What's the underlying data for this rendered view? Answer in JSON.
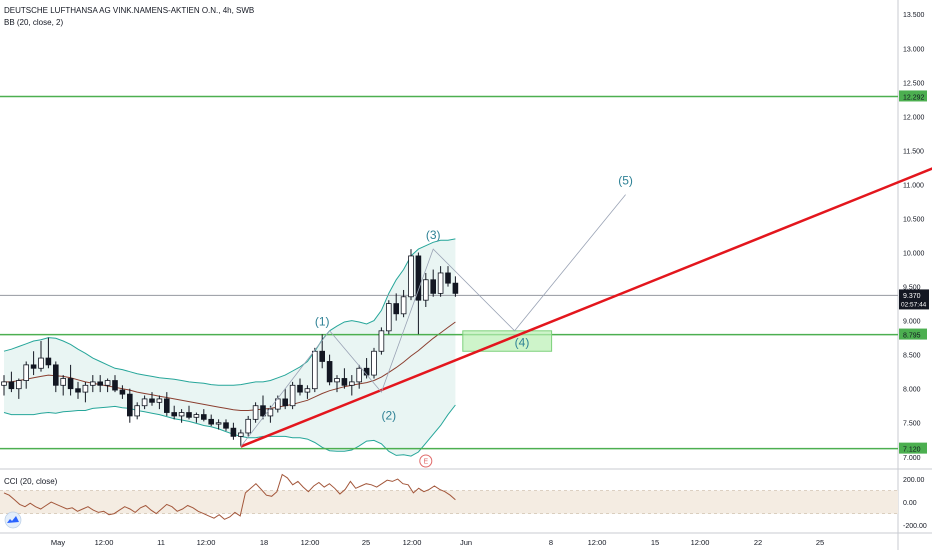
{
  "header": {
    "symbol_line": "DEUTSCHE LUFTHANSA AG VINK.NAMENS-AKTIEN O.N., 4h, SWB",
    "indicator_line": "BB (20, close, 2)"
  },
  "cci_pane": {
    "title": "CCI (20, close)",
    "ticks": [
      "200.00",
      "0.00",
      "-200.00"
    ],
    "tick_values": [
      200,
      0,
      -200
    ],
    "range": [
      -260,
      270
    ],
    "band": [
      100,
      -100
    ],
    "values": [
      80,
      60,
      20,
      -20,
      -40,
      -10,
      -40,
      -60,
      -30,
      0,
      -20,
      -40,
      -60,
      -50,
      -80,
      -60,
      -40,
      -70,
      -90,
      -80,
      -110,
      -100,
      -70,
      -40,
      -60,
      -90,
      -50,
      -30,
      -70,
      -100,
      -60,
      -20,
      -40,
      -80,
      -60,
      -30,
      -50,
      -80,
      -100,
      -120,
      -140,
      -110,
      -150,
      -130,
      -90,
      -120,
      80,
      120,
      160,
      110,
      60,
      50,
      90,
      240,
      210,
      150,
      180,
      130,
      90,
      140,
      170,
      130,
      160,
      120,
      70,
      110,
      180,
      120,
      140,
      160,
      150,
      130,
      160,
      190,
      180,
      200,
      160,
      150,
      80,
      120,
      90,
      110,
      140,
      110,
      90,
      60,
      20
    ]
  },
  "chart_data": {
    "type": "candlestick",
    "title": "DEUTSCHE LUFTHANSA AG VINK.NAMENS-AKTIEN O.N., 4h, SWB",
    "indicators": [
      "BB (20, close, 2)",
      "CCI (20, close)"
    ],
    "ylim": [
      6.85,
      13.65
    ],
    "y_ticks": [
      7.0,
      7.5,
      8.0,
      8.5,
      9.0,
      9.5,
      10.0,
      10.5,
      11.0,
      11.5,
      12.0,
      12.5,
      13.0,
      13.5
    ],
    "y_tick_labels": [
      "7.000",
      "7.500",
      "8.000",
      "8.500",
      "9.000",
      "9.500",
      "10.000",
      "10.500",
      "11.000",
      "11.500",
      "12.000",
      "12.500",
      "13.000",
      "13.500"
    ],
    "x_labels": [
      "May",
      "12:00",
      "11",
      "12:00",
      "18",
      "12:00",
      "25",
      "12:00",
      "Jun",
      "8",
      "12:00",
      "15",
      "12:00",
      "22",
      "25"
    ],
    "candles": [
      {
        "o": 8.05,
        "h": 8.2,
        "l": 7.9,
        "c": 8.1
      },
      {
        "o": 8.1,
        "h": 8.25,
        "l": 7.95,
        "c": 8.0
      },
      {
        "o": 8.0,
        "h": 8.15,
        "l": 7.85,
        "c": 8.12
      },
      {
        "o": 8.12,
        "h": 8.4,
        "l": 8.0,
        "c": 8.35
      },
      {
        "o": 8.35,
        "h": 8.55,
        "l": 8.2,
        "c": 8.3
      },
      {
        "o": 8.3,
        "h": 8.7,
        "l": 8.25,
        "c": 8.45
      },
      {
        "o": 8.45,
        "h": 8.75,
        "l": 8.3,
        "c": 8.35
      },
      {
        "o": 8.35,
        "h": 8.4,
        "l": 7.95,
        "c": 8.05
      },
      {
        "o": 8.05,
        "h": 8.2,
        "l": 7.9,
        "c": 8.15
      },
      {
        "o": 8.15,
        "h": 8.35,
        "l": 7.9,
        "c": 8.0
      },
      {
        "o": 8.0,
        "h": 8.1,
        "l": 7.85,
        "c": 7.95
      },
      {
        "o": 7.95,
        "h": 8.1,
        "l": 7.8,
        "c": 8.05
      },
      {
        "o": 8.05,
        "h": 8.2,
        "l": 7.95,
        "c": 8.1
      },
      {
        "o": 8.1,
        "h": 8.2,
        "l": 7.95,
        "c": 8.05
      },
      {
        "o": 8.05,
        "h": 8.15,
        "l": 7.95,
        "c": 8.12
      },
      {
        "o": 8.12,
        "h": 8.2,
        "l": 7.95,
        "c": 7.98
      },
      {
        "o": 7.98,
        "h": 8.05,
        "l": 7.85,
        "c": 7.92
      },
      {
        "o": 7.92,
        "h": 8.0,
        "l": 7.5,
        "c": 7.6
      },
      {
        "o": 7.6,
        "h": 7.8,
        "l": 7.55,
        "c": 7.75
      },
      {
        "o": 7.75,
        "h": 7.9,
        "l": 7.7,
        "c": 7.85
      },
      {
        "o": 7.85,
        "h": 7.95,
        "l": 7.75,
        "c": 7.8
      },
      {
        "o": 7.8,
        "h": 7.9,
        "l": 7.7,
        "c": 7.85
      },
      {
        "o": 7.85,
        "h": 7.95,
        "l": 7.6,
        "c": 7.65
      },
      {
        "o": 7.65,
        "h": 7.75,
        "l": 7.55,
        "c": 7.6
      },
      {
        "o": 7.6,
        "h": 7.7,
        "l": 7.5,
        "c": 7.65
      },
      {
        "o": 7.65,
        "h": 7.75,
        "l": 7.55,
        "c": 7.58
      },
      {
        "o": 7.58,
        "h": 7.65,
        "l": 7.5,
        "c": 7.62
      },
      {
        "o": 7.62,
        "h": 7.7,
        "l": 7.52,
        "c": 7.55
      },
      {
        "o": 7.55,
        "h": 7.62,
        "l": 7.45,
        "c": 7.48
      },
      {
        "o": 7.48,
        "h": 7.55,
        "l": 7.4,
        "c": 7.5
      },
      {
        "o": 7.5,
        "h": 7.55,
        "l": 7.38,
        "c": 7.42
      },
      {
        "o": 7.42,
        "h": 7.5,
        "l": 7.25,
        "c": 7.3
      },
      {
        "o": 7.3,
        "h": 7.4,
        "l": 7.15,
        "c": 7.35
      },
      {
        "o": 7.35,
        "h": 7.6,
        "l": 7.3,
        "c": 7.55
      },
      {
        "o": 7.55,
        "h": 7.8,
        "l": 7.5,
        "c": 7.75
      },
      {
        "o": 7.75,
        "h": 7.9,
        "l": 7.55,
        "c": 7.6
      },
      {
        "o": 7.6,
        "h": 7.75,
        "l": 7.5,
        "c": 7.7
      },
      {
        "o": 7.7,
        "h": 7.9,
        "l": 7.65,
        "c": 7.85
      },
      {
        "o": 7.85,
        "h": 8.0,
        "l": 7.7,
        "c": 7.75
      },
      {
        "o": 7.75,
        "h": 8.1,
        "l": 7.7,
        "c": 8.05
      },
      {
        "o": 8.05,
        "h": 8.15,
        "l": 7.9,
        "c": 7.95
      },
      {
        "o": 7.95,
        "h": 8.05,
        "l": 7.85,
        "c": 8.0
      },
      {
        "o": 8.0,
        "h": 8.6,
        "l": 7.95,
        "c": 8.55
      },
      {
        "o": 8.55,
        "h": 8.8,
        "l": 8.3,
        "c": 8.4
      },
      {
        "o": 8.4,
        "h": 8.5,
        "l": 8.05,
        "c": 8.1
      },
      {
        "o": 8.1,
        "h": 8.2,
        "l": 7.95,
        "c": 8.15
      },
      {
        "o": 8.15,
        "h": 8.3,
        "l": 8.0,
        "c": 8.05
      },
      {
        "o": 8.05,
        "h": 8.2,
        "l": 7.9,
        "c": 8.1
      },
      {
        "o": 8.1,
        "h": 8.35,
        "l": 8.0,
        "c": 8.3
      },
      {
        "o": 8.3,
        "h": 8.45,
        "l": 8.15,
        "c": 8.2
      },
      {
        "o": 8.2,
        "h": 8.6,
        "l": 8.15,
        "c": 8.55
      },
      {
        "o": 8.55,
        "h": 8.9,
        "l": 8.5,
        "c": 8.85
      },
      {
        "o": 8.85,
        "h": 9.3,
        "l": 8.8,
        "c": 9.25
      },
      {
        "o": 9.25,
        "h": 9.4,
        "l": 9.0,
        "c": 9.1
      },
      {
        "o": 9.1,
        "h": 9.45,
        "l": 9.05,
        "c": 9.35
      },
      {
        "o": 9.35,
        "h": 10.05,
        "l": 9.3,
        "c": 9.95
      },
      {
        "o": 9.95,
        "h": 10.0,
        "l": 8.8,
        "c": 9.3
      },
      {
        "o": 9.3,
        "h": 9.7,
        "l": 9.2,
        "c": 9.6
      },
      {
        "o": 9.6,
        "h": 9.75,
        "l": 9.35,
        "c": 9.4
      },
      {
        "o": 9.4,
        "h": 9.8,
        "l": 9.35,
        "c": 9.7
      },
      {
        "o": 9.7,
        "h": 9.8,
        "l": 9.5,
        "c": 9.55
      },
      {
        "o": 9.55,
        "h": 9.65,
        "l": 9.35,
        "c": 9.4
      }
    ],
    "bb_upper": [
      8.55,
      8.58,
      8.62,
      8.66,
      8.7,
      8.72,
      8.75,
      8.74,
      8.7,
      8.65,
      8.58,
      8.52,
      8.45,
      8.4,
      8.35,
      8.3,
      8.28,
      8.25,
      8.22,
      8.2,
      8.18,
      8.16,
      8.15,
      8.14,
      8.12,
      8.1,
      8.09,
      8.08,
      8.06,
      8.05,
      8.05,
      8.05,
      8.06,
      8.08,
      8.1,
      8.1,
      8.12,
      8.16,
      8.2,
      8.26,
      8.32,
      8.4,
      8.55,
      8.72,
      8.85,
      8.92,
      8.98,
      9.0,
      8.98,
      8.95,
      9.0,
      9.15,
      9.4,
      9.6,
      9.75,
      9.95,
      10.05,
      10.1,
      10.15,
      10.18,
      10.18,
      10.2
    ],
    "bb_mid": [
      8.1,
      8.1,
      8.12,
      8.14,
      8.16,
      8.18,
      8.2,
      8.19,
      8.18,
      8.16,
      8.13,
      8.1,
      8.08,
      8.06,
      8.04,
      8.02,
      8.0,
      7.98,
      7.95,
      7.93,
      7.91,
      7.89,
      7.87,
      7.85,
      7.83,
      7.81,
      7.79,
      7.77,
      7.75,
      7.73,
      7.71,
      7.69,
      7.68,
      7.68,
      7.69,
      7.7,
      7.71,
      7.73,
      7.75,
      7.77,
      7.8,
      7.83,
      7.88,
      7.93,
      7.97,
      8.0,
      8.03,
      8.05,
      8.07,
      8.09,
      8.12,
      8.17,
      8.24,
      8.31,
      8.39,
      8.48,
      8.56,
      8.65,
      8.74,
      8.82,
      8.9,
      8.98
    ],
    "bb_lower": [
      7.65,
      7.62,
      7.62,
      7.62,
      7.62,
      7.64,
      7.65,
      7.64,
      7.66,
      7.67,
      7.68,
      7.68,
      7.71,
      7.72,
      7.73,
      7.74,
      7.72,
      7.71,
      7.68,
      7.66,
      7.64,
      7.62,
      7.59,
      7.56,
      7.54,
      7.52,
      7.49,
      7.46,
      7.44,
      7.41,
      7.37,
      7.33,
      7.3,
      7.28,
      7.28,
      7.3,
      7.3,
      7.3,
      7.3,
      7.28,
      7.28,
      7.26,
      7.21,
      7.14,
      7.09,
      7.08,
      7.08,
      7.1,
      7.16,
      7.23,
      7.24,
      7.19,
      7.08,
      7.02,
      7.03,
      7.01,
      7.07,
      7.2,
      7.33,
      7.46,
      7.62,
      7.76
    ],
    "horizontal_levels": [
      {
        "value": 12.292,
        "label": "12.292",
        "color": "#4caf50"
      },
      {
        "value": 8.795,
        "label": "8.795",
        "color": "#4caf50"
      },
      {
        "value": 7.12,
        "label": "7.120",
        "color": "#4caf50"
      }
    ],
    "last_price": {
      "value": 9.37,
      "label": "9.370",
      "countdown": "02:57:44"
    },
    "trendline": {
      "from": {
        "x_index": 32,
        "y": 7.15
      },
      "to": {
        "x_index": 132,
        "y": 11.52
      },
      "color": "#e3161d"
    },
    "target_box": {
      "x_index_start": 62,
      "x_index_end": 74,
      "y_top": 8.85,
      "y_bottom": 8.55
    },
    "wave_labels": [
      {
        "text": "(1)",
        "x_index": 43,
        "y": 8.93
      },
      {
        "text": "(2)",
        "x_index": 52,
        "y": 7.55
      },
      {
        "text": "(3)",
        "x_index": 58,
        "y": 10.2
      },
      {
        "text": "(4)",
        "x_index": 70,
        "y": 8.62
      },
      {
        "text": "(5)",
        "x_index": 84,
        "y": 11.0
      }
    ],
    "wave_path": [
      {
        "x_index": 32,
        "y": 7.15
      },
      {
        "x_index": 44,
        "y": 8.85
      },
      {
        "x_index": 51,
        "y": 7.95
      },
      {
        "x_index": 58,
        "y": 10.05
      },
      {
        "x_index": 69,
        "y": 8.85
      },
      {
        "x_index": 84,
        "y": 10.85
      }
    ],
    "event_marker": "E",
    "colors": {
      "up": "#ffffff",
      "down": "#131722",
      "band_fill": "#e9f5f3",
      "band_line": "#26a69a",
      "ma": "#8b3f30",
      "cci": "#a3573b",
      "cci_band": "#f4ece2",
      "wave_text": "#2f8296"
    }
  }
}
